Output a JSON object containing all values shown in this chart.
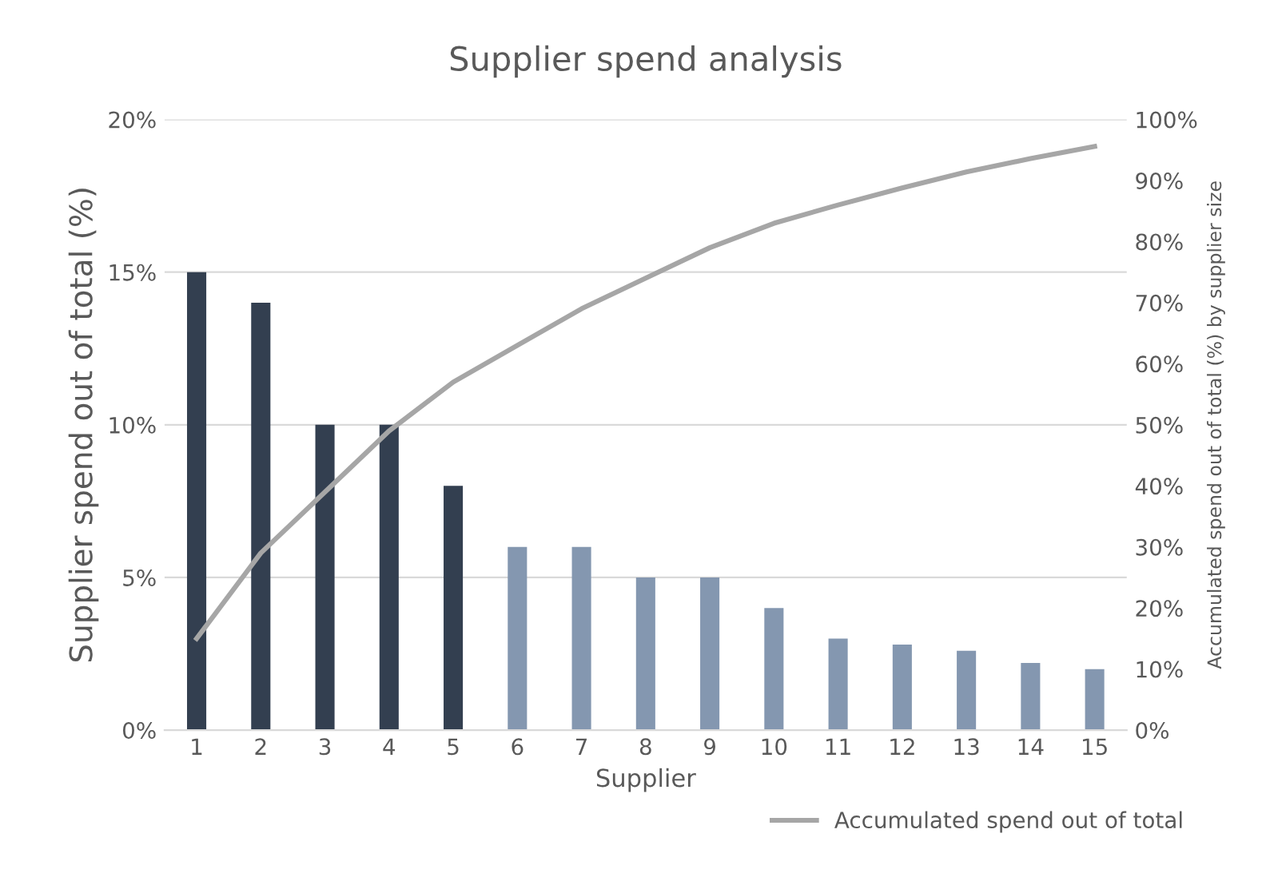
{
  "chart_data": {
    "type": "bar",
    "title": "Supplier spend analysis",
    "xlabel": "Supplier",
    "ylabel": "Supplier spend out of total (%)",
    "y2label": "Accumulated spend out of total (%) by supplier size",
    "categories": [
      "1",
      "2",
      "3",
      "4",
      "5",
      "6",
      "7",
      "8",
      "9",
      "10",
      "11",
      "12",
      "13",
      "14",
      "15"
    ],
    "series": [
      {
        "colors": [
          "#333f50",
          "#333f50",
          "#333f50",
          "#333f50",
          "#333f50",
          "#8497b0",
          "#8497b0",
          "#8497b0",
          "#8497b0",
          "#8497b0",
          "#8497b0",
          "#8497b0",
          "#8497b0",
          "#8497b0",
          "#8497b0"
        ],
        "values": [
          15,
          14,
          10,
          10,
          8,
          6,
          6,
          5,
          5,
          4,
          3,
          2.8,
          2.6,
          2.2,
          2
        ]
      },
      {
        "type": "line",
        "name": "Accumulated spend out of total",
        "color": "#a6a6a6",
        "axis": "y2",
        "values": [
          15,
          29,
          39,
          49,
          57,
          63,
          69,
          74,
          79,
          83,
          86,
          88.8,
          91.4,
          93.6,
          95.6
        ]
      }
    ],
    "ylim": [
      0,
      20
    ],
    "yticks": [
      {
        "value": 0,
        "label": "0%"
      },
      {
        "value": 5,
        "label": "5%"
      },
      {
        "value": 10,
        "label": "10%"
      },
      {
        "value": 15,
        "label": "15%"
      },
      {
        "value": 20,
        "label": "20%"
      }
    ],
    "y2lim": [
      0,
      100
    ],
    "y2ticks": [
      {
        "value": 0,
        "label": "0%"
      },
      {
        "value": 10,
        "label": "10%"
      },
      {
        "value": 20,
        "label": "20%"
      },
      {
        "value": 30,
        "label": "30%"
      },
      {
        "value": 40,
        "label": "40%"
      },
      {
        "value": 50,
        "label": "50%"
      },
      {
        "value": 60,
        "label": "60%"
      },
      {
        "value": 70,
        "label": "70%"
      },
      {
        "value": 80,
        "label": "80%"
      },
      {
        "value": 90,
        "label": "90%"
      },
      {
        "value": 100,
        "label": "100%"
      }
    ],
    "grid": "y",
    "legend": "bottom right",
    "marker": "none",
    "line_style": "solid"
  }
}
